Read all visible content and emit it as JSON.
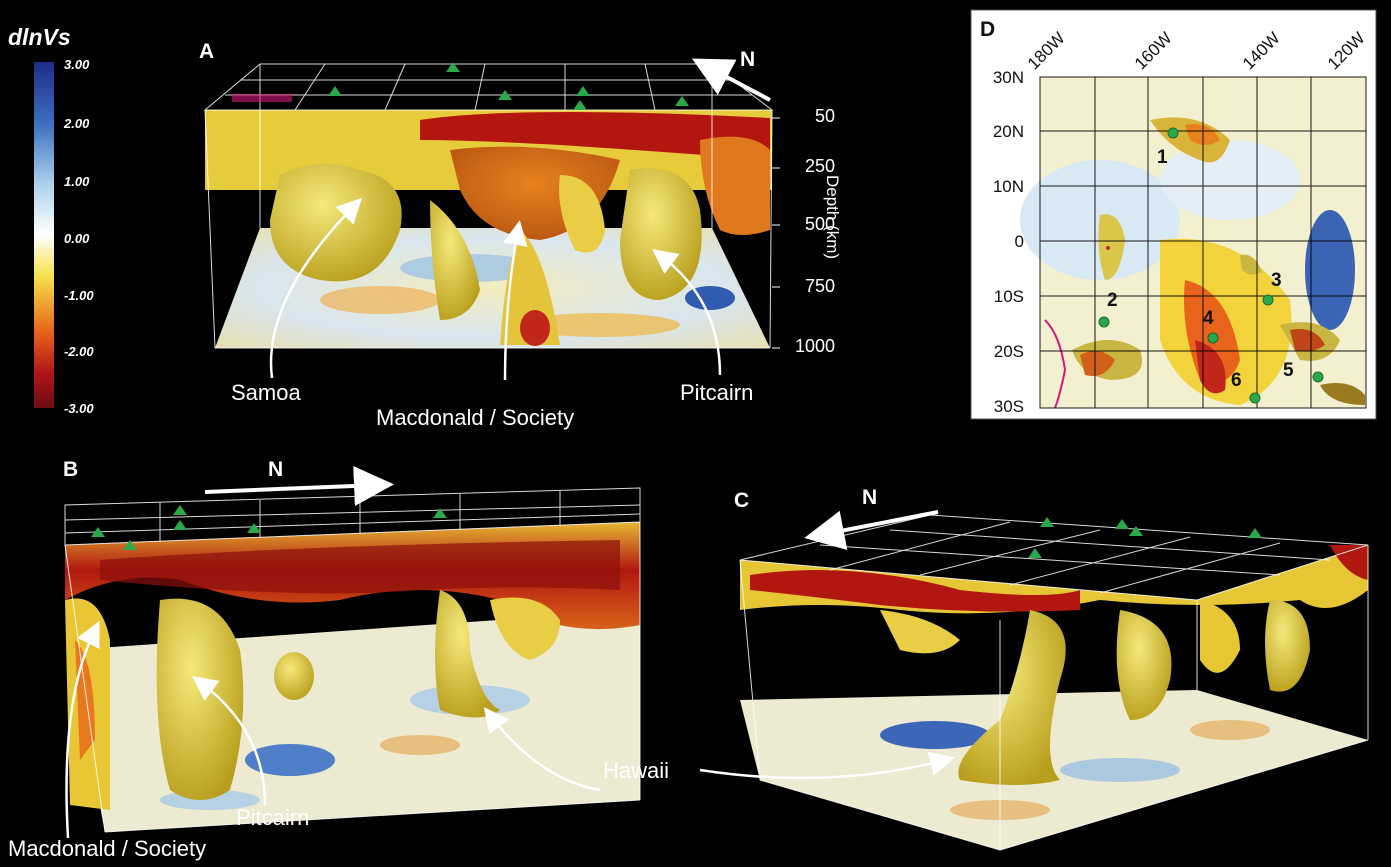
{
  "colorbar": {
    "title": "dlnVs",
    "ticks": [
      "3.00",
      "2.00",
      "1.00",
      "0.00",
      "-1.00",
      "-2.00",
      "-3.00"
    ],
    "colors": [
      "#1d2d8a",
      "#3f6fc0",
      "#a9d0ec",
      "#ffffff",
      "#f6e14a",
      "#e8641a",
      "#b0151a",
      "#6e0c10"
    ]
  },
  "panel_a": {
    "letter": "A",
    "north": "N",
    "depth_ticks": [
      "50",
      "250",
      "500",
      "750",
      "1000"
    ],
    "depth_label": "Depth (km)",
    "labels": {
      "samoa": "Samoa",
      "macdonald": "Macdonald / Society",
      "pitcairn": "Pitcairn"
    }
  },
  "panel_b": {
    "letter": "B",
    "north": "N",
    "labels": {
      "macdonald": "Macdonald / Society",
      "pitcairn": "Pitcairn"
    }
  },
  "panel_c": {
    "letter": "C",
    "north": "N",
    "labels": {
      "hawaii": "Hawaii"
    }
  },
  "panel_d": {
    "letter": "D",
    "lon_labels": [
      "180W",
      "160W",
      "140W",
      "120W"
    ],
    "lat_labels": [
      "30N",
      "20N",
      "10N",
      "0",
      "10S",
      "20S",
      "30S"
    ],
    "hotspots": [
      "1",
      "2",
      "3",
      "4",
      "5",
      "6"
    ]
  },
  "colors": {
    "plume_yellow": "#e2cf3c",
    "anomaly_red": "#c01a12",
    "anomaly_orange": "#e8771c",
    "fast_blue": "#6e9fd6",
    "hotspot_green": "#2aa84a"
  }
}
